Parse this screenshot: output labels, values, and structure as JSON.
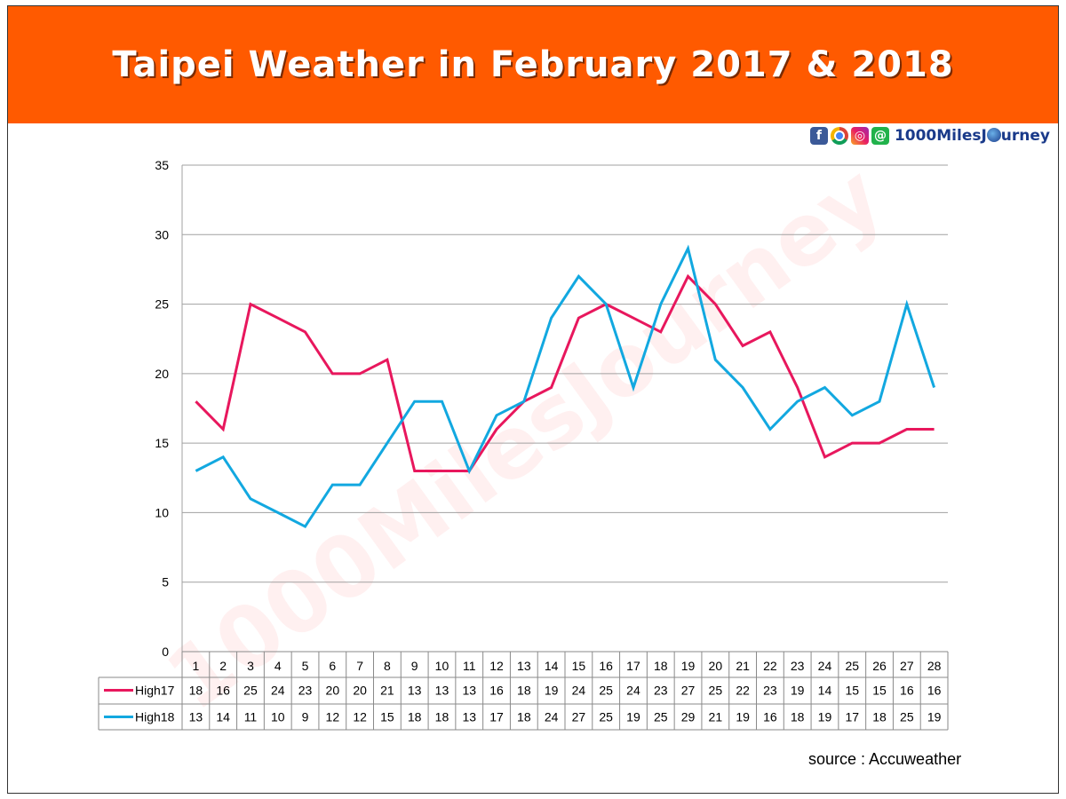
{
  "header": {
    "title": "Taipei Weather  in  February 2017 & 2018"
  },
  "brand": {
    "text_before": "1000MilesJ",
    "text_after": "urney",
    "icons": [
      "facebook-icon",
      "chrome-icon",
      "instagram-icon",
      "line-at-icon"
    ]
  },
  "watermark": "1000MilesJourney",
  "source": "source : Accuweather",
  "chart_data": {
    "type": "line",
    "categories": [
      "1",
      "2",
      "3",
      "4",
      "5",
      "6",
      "7",
      "8",
      "9",
      "10",
      "11",
      "12",
      "13",
      "14",
      "15",
      "16",
      "17",
      "18",
      "19",
      "20",
      "21",
      "22",
      "23",
      "24",
      "25",
      "26",
      "27",
      "28"
    ],
    "series": [
      {
        "name": "High17",
        "color": "#e8175d",
        "values": [
          18,
          16,
          25,
          24,
          23,
          20,
          20,
          21,
          13,
          13,
          13,
          16,
          18,
          19,
          24,
          25,
          24,
          23,
          27,
          25,
          22,
          23,
          19,
          14,
          15,
          15,
          16,
          16
        ]
      },
      {
        "name": "High18",
        "color": "#12a8e0",
        "values": [
          13,
          14,
          11,
          10,
          9,
          12,
          12,
          15,
          18,
          18,
          13,
          17,
          18,
          24,
          27,
          25,
          19,
          25,
          29,
          21,
          19,
          16,
          18,
          19,
          17,
          18,
          25,
          19
        ]
      }
    ],
    "yticks": [
      "0",
      "5",
      "10",
      "15",
      "20",
      "25",
      "30",
      "35"
    ],
    "ylim": [
      0,
      35
    ],
    "grid": true,
    "legend": "data-table"
  }
}
